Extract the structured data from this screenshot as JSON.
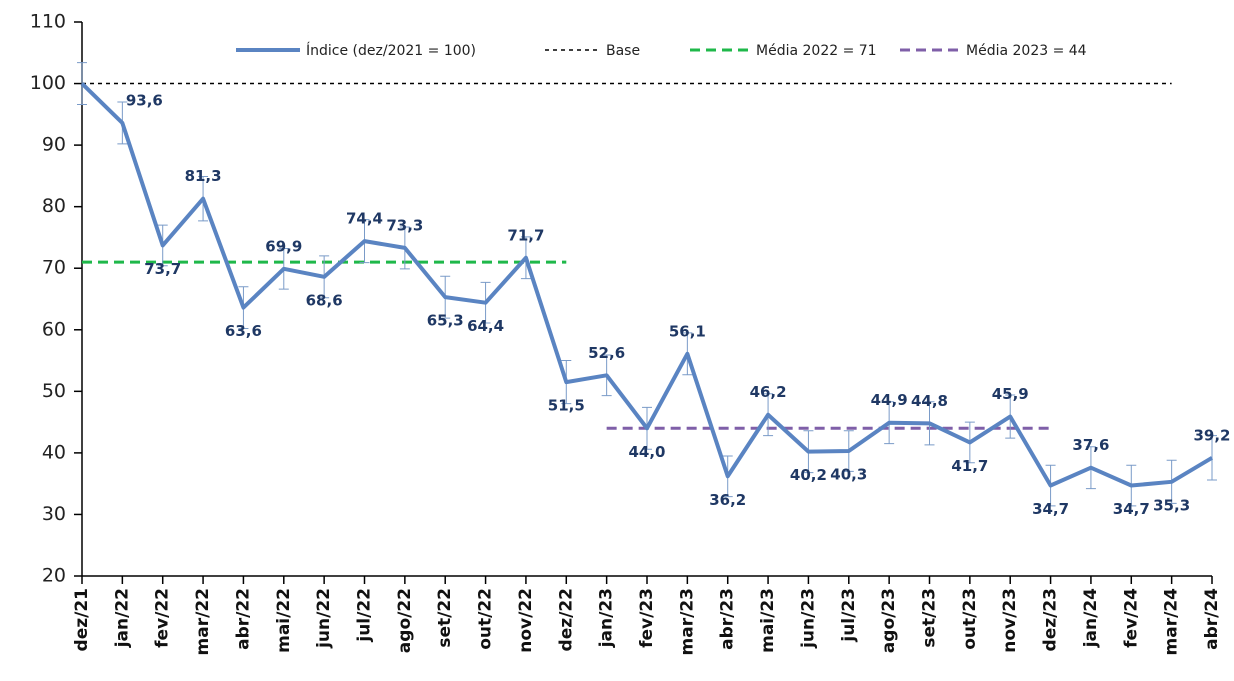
{
  "chart_data": {
    "type": "line",
    "categories": [
      "dez/21",
      "jan/22",
      "fev/22",
      "mar/22",
      "abr/22",
      "mai/22",
      "jun/22",
      "jul/22",
      "ago/22",
      "set/22",
      "out/22",
      "nov/22",
      "dez/22",
      "jan/23",
      "fev/23",
      "mar/23",
      "abr/23",
      "mai/23",
      "jun/23",
      "jul/23",
      "ago/23",
      "set/23",
      "out/23",
      "nov/23",
      "dez/23",
      "jan/24",
      "fev/24",
      "mar/24",
      "abr/24"
    ],
    "series": [
      {
        "name": "Índice (dez/2021 = 100)",
        "color": "#5a84c2",
        "values": [
          100,
          93.6,
          73.7,
          81.3,
          63.6,
          69.9,
          68.6,
          74.4,
          73.3,
          65.3,
          64.4,
          71.7,
          51.5,
          52.6,
          44.0,
          56.1,
          36.2,
          46.2,
          40.2,
          40.3,
          44.9,
          44.8,
          41.7,
          45.9,
          34.7,
          37.6,
          34.7,
          35.3,
          39.2
        ],
        "value_labels": [
          null,
          "93,6",
          "73,7",
          "81,3",
          "63,6",
          "69,9",
          "68,6",
          "74,4",
          "73,3",
          "65,3",
          "64,4",
          "71,7",
          "51,5",
          "52,6",
          "44,0",
          "56,1",
          "36,2",
          "46,2",
          "40,2",
          "40,3",
          "44,9",
          "44,8",
          "41,7",
          "45,9",
          "34,7",
          "37,6",
          "34,7",
          "35,3",
          "39,2"
        ],
        "errors": [
          3.4,
          3.4,
          3.3,
          3.6,
          3.4,
          3.3,
          3.4,
          3.5,
          3.4,
          3.4,
          3.3,
          3.4,
          3.5,
          3.3,
          3.4,
          3.4,
          3.3,
          3.4,
          3.4,
          3.3,
          3.4,
          3.5,
          3.3,
          3.5,
          3.3,
          3.4,
          3.3,
          3.5,
          3.6
        ]
      }
    ],
    "reference_lines": [
      {
        "name": "Base",
        "value": 100,
        "color": "#000000",
        "start": "dez/21",
        "end": "mar/24"
      },
      {
        "name": "Média 2022 = 71",
        "value": 71,
        "color": "#1fb84a",
        "start": "dez/21",
        "end": "dez/22"
      },
      {
        "name": "Média 2023 = 44",
        "value": 44,
        "color": "#7f5fa8",
        "start": "jan/23",
        "end": "dez/23"
      }
    ],
    "ylim": [
      20,
      110
    ],
    "yticks": [
      20,
      30,
      40,
      50,
      60,
      70,
      80,
      90,
      100,
      110
    ]
  }
}
